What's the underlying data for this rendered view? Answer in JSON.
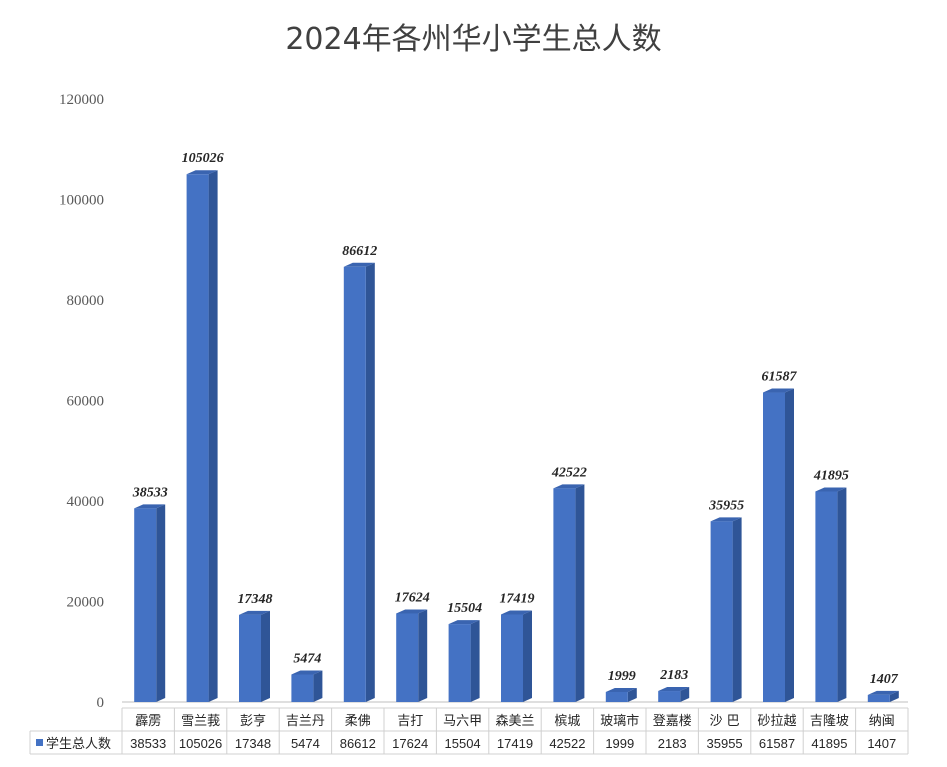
{
  "chart_data": {
    "type": "bar",
    "title": "2024年各州华小学生总人数",
    "categories": [
      "霹雳",
      "雪兰莪",
      "彭亨",
      "吉兰丹",
      "柔佛",
      "吉打",
      "马六甲",
      "森美兰",
      "槟城",
      "玻璃市",
      "登嘉楼",
      "沙  巴",
      "砂拉越",
      "吉隆坡",
      "纳闽"
    ],
    "series": [
      {
        "name": "学生总人数",
        "values": [
          38533,
          105026,
          17348,
          5474,
          86612,
          17624,
          15504,
          17419,
          42522,
          1999,
          2183,
          35955,
          61587,
          41895,
          1407
        ],
        "color": "#4472C4",
        "side_color": "#2F5597",
        "top_color": "#3A64B0"
      }
    ],
    "ylim": [
      0,
      120000
    ],
    "yticks": [
      0,
      20000,
      40000,
      60000,
      80000,
      100000,
      120000
    ],
    "ytick_labels": [
      "0",
      "20000",
      "40000",
      "60000",
      "80000",
      "100000",
      "120000"
    ],
    "data_labels": [
      "38533",
      "105026",
      "17348",
      "5474",
      "86612",
      "17624",
      "15504",
      "17419",
      "42522",
      "1999",
      "2183",
      "35955",
      "61587",
      "41895",
      "1407"
    ],
    "grid": false,
    "legend_position": "data-table",
    "style": "3d-column"
  }
}
